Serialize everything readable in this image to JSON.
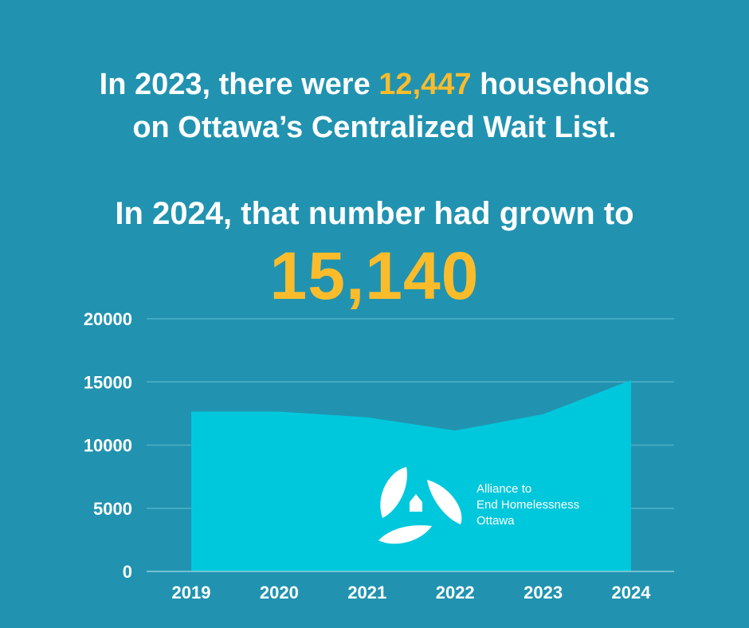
{
  "headline": {
    "line1_pre": "In 2023, there were ",
    "line1_highlight": "12,447",
    "line1_post": " households",
    "line2": "on Ottawa’s Centralized Wait List.",
    "line3": "In 2024, that number had grown to",
    "big_number": "15,140"
  },
  "logo": {
    "lines": [
      "Alliance to",
      "End Homelessness",
      "Ottawa"
    ]
  },
  "colors": {
    "background": "#2193b0",
    "area": "#00c8dc",
    "highlight": "#fbbc2c",
    "grid": "#4fb0c8"
  },
  "chart_data": {
    "type": "area",
    "title": "",
    "xlabel": "",
    "ylabel": "",
    "categories": [
      "2019",
      "2020",
      "2021",
      "2022",
      "2023",
      "2024"
    ],
    "values": [
      12650,
      12650,
      12200,
      11150,
      12447,
      15140
    ],
    "ylim": [
      0,
      20000
    ],
    "yticks": [
      0,
      5000,
      10000,
      15000,
      20000
    ],
    "ytick_labels": [
      "0",
      "5000",
      "10000",
      "15000",
      "20000"
    ],
    "grid": true,
    "legend": "none"
  }
}
